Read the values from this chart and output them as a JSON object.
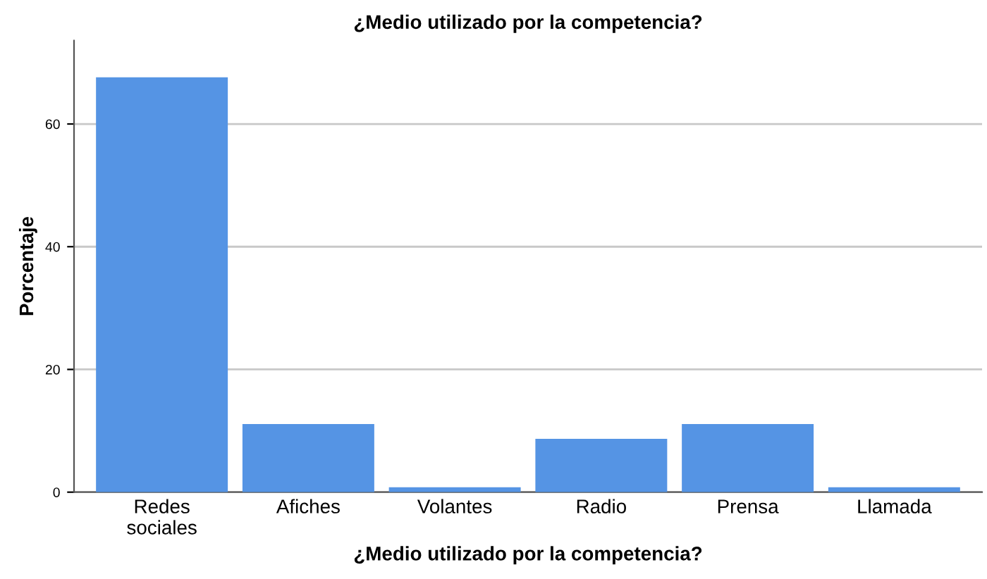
{
  "chart_data": {
    "type": "bar",
    "title": "¿Medio utilizado por la competencia?",
    "xlabel": "¿Medio utilizado por la competencia?",
    "ylabel": "Porcentaje",
    "categories": [
      "Redes\nsociales",
      "Afiches",
      "Volantes",
      "Radio",
      "Prensa",
      "Llamada"
    ],
    "values": [
      67.6,
      11.1,
      0.8,
      8.7,
      11.1,
      0.8
    ],
    "color": "#5594e4",
    "ylim": [
      0,
      73.6
    ],
    "yticks": [
      0,
      20,
      40,
      60
    ],
    "grid": "y"
  }
}
